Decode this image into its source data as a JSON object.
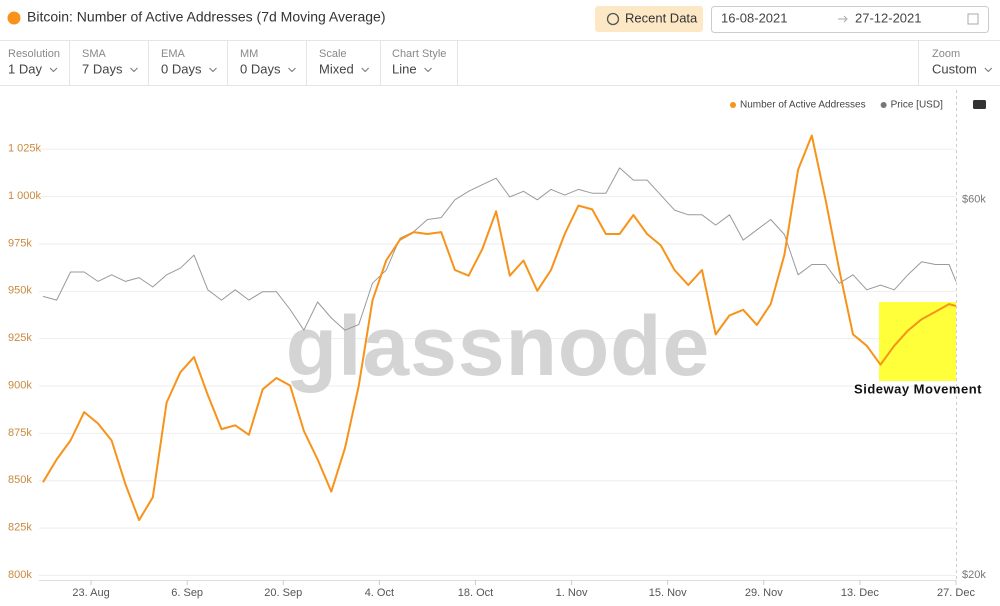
{
  "header": {
    "title": "Bitcoin: Number of Active Addresses (7d Moving Average)",
    "button": "Recent Data",
    "date_from": "16-08-2021",
    "date_to": "27-12-2021"
  },
  "controls": [
    {
      "label": "Resolution",
      "value": "1 Day"
    },
    {
      "label": "SMA",
      "value": "7 Days"
    },
    {
      "label": "EMA",
      "value": "0 Days"
    },
    {
      "label": "MM",
      "value": "0 Days"
    },
    {
      "label": "Scale",
      "value": "Mixed"
    },
    {
      "label": "Chart Style",
      "value": "Line"
    },
    {
      "label": "Zoom",
      "value": "Custom"
    }
  ],
  "chart_data": {
    "type": "line",
    "watermark": "glassnode",
    "annotation": "Sideway Movement",
    "x": [
      "2021-08-16",
      "2021-08-18",
      "2021-08-20",
      "2021-08-22",
      "2021-08-24",
      "2021-08-26",
      "2021-08-28",
      "2021-08-30",
      "2021-09-01",
      "2021-09-03",
      "2021-09-05",
      "2021-09-07",
      "2021-09-09",
      "2021-09-11",
      "2021-09-13",
      "2021-09-15",
      "2021-09-17",
      "2021-09-19",
      "2021-09-21",
      "2021-09-23",
      "2021-09-25",
      "2021-09-27",
      "2021-09-29",
      "2021-10-01",
      "2021-10-03",
      "2021-10-05",
      "2021-10-07",
      "2021-10-09",
      "2021-10-11",
      "2021-10-13",
      "2021-10-15",
      "2021-10-17",
      "2021-10-19",
      "2021-10-21",
      "2021-10-23",
      "2021-10-25",
      "2021-10-27",
      "2021-10-29",
      "2021-10-31",
      "2021-11-02",
      "2021-11-04",
      "2021-11-06",
      "2021-11-08",
      "2021-11-10",
      "2021-11-12",
      "2021-11-14",
      "2021-11-16",
      "2021-11-18",
      "2021-11-20",
      "2021-11-22",
      "2021-11-24",
      "2021-11-26",
      "2021-11-28",
      "2021-11-30",
      "2021-12-02",
      "2021-12-04",
      "2021-12-06",
      "2021-12-08",
      "2021-12-10",
      "2021-12-12",
      "2021-12-14",
      "2021-12-16",
      "2021-12-18",
      "2021-12-20",
      "2021-12-22",
      "2021-12-24",
      "2021-12-26",
      "2021-12-27"
    ],
    "series": [
      {
        "name": "Number of Active Addresses",
        "color": "#f7931a",
        "values": [
          849000,
          861000,
          871000,
          886000,
          880000,
          871000,
          848000,
          829000,
          841000,
          891000,
          907000,
          915000,
          895000,
          877000,
          879000,
          874000,
          898000,
          904000,
          900000,
          876000,
          861000,
          844000,
          867000,
          900000,
          945000,
          966000,
          977000,
          981000,
          980000,
          981000,
          961000,
          958000,
          972000,
          992000,
          958000,
          966000,
          950000,
          961000,
          980000,
          995000,
          993000,
          980000,
          980000,
          990000,
          980000,
          974000,
          961000,
          953000,
          961000,
          927000,
          937000,
          940000,
          932000,
          943000,
          969000,
          1014000,
          1032000,
          998000,
          961000,
          927000,
          921000,
          911000,
          921000,
          929000,
          935000,
          939000,
          943000,
          942000
        ]
      },
      {
        "name": "Price [USD]",
        "color": "#9a9a9a",
        "axis": "y2",
        "values": [
          49700,
          49300,
          52300,
          52300,
          51300,
          52000,
          51300,
          51700,
          50700,
          52000,
          52700,
          54100,
          50400,
          49300,
          50400,
          49300,
          50200,
          50200,
          48300,
          46100,
          49100,
          47400,
          46100,
          46700,
          51100,
          52500,
          55900,
          56600,
          57900,
          58100,
          60000,
          60900,
          61600,
          62300,
          60300,
          60900,
          60000,
          61100,
          60500,
          61100,
          60700,
          60700,
          63400,
          62100,
          62100,
          60500,
          58900,
          58400,
          58400,
          57300,
          58400,
          55700,
          56800,
          57900,
          56300,
          52000,
          53100,
          53100,
          51100,
          52000,
          50400,
          50900,
          50400,
          52000,
          53400,
          53100,
          53100,
          51300
        ]
      }
    ],
    "xlim": [
      "2021-08-16",
      "2021-12-27"
    ],
    "xticks": [
      {
        "value": "2021-08-23",
        "label": "23. Aug"
      },
      {
        "value": "2021-09-06",
        "label": "6. Sep"
      },
      {
        "value": "2021-09-20",
        "label": "20. Sep"
      },
      {
        "value": "2021-10-04",
        "label": "4. Oct"
      },
      {
        "value": "2021-10-18",
        "label": "18. Oct"
      },
      {
        "value": "2021-11-01",
        "label": "1. Nov"
      },
      {
        "value": "2021-11-15",
        "label": "15. Nov"
      },
      {
        "value": "2021-11-29",
        "label": "29. Nov"
      },
      {
        "value": "2021-12-13",
        "label": "13. Dec"
      },
      {
        "value": "2021-12-27",
        "label": "27. Dec"
      }
    ],
    "ylim": [
      800000,
      1056000
    ],
    "yticks": [
      {
        "value": 800000,
        "label": "800k"
      },
      {
        "value": 825000,
        "label": "825k"
      },
      {
        "value": 850000,
        "label": "850k"
      },
      {
        "value": 875000,
        "label": "875k"
      },
      {
        "value": 900000,
        "label": "900k"
      },
      {
        "value": 925000,
        "label": "925k"
      },
      {
        "value": 950000,
        "label": "950k"
      },
      {
        "value": 975000,
        "label": "975k"
      },
      {
        "value": 1000000,
        "label": "1 000k"
      },
      {
        "value": 1025000,
        "label": "1 025k"
      }
    ],
    "y2lim": [
      20000,
      71700
    ],
    "y2ticks": [
      {
        "value": 20000,
        "label": "$20k"
      },
      {
        "value": 60000,
        "label": "$60k"
      }
    ],
    "grid": true
  }
}
